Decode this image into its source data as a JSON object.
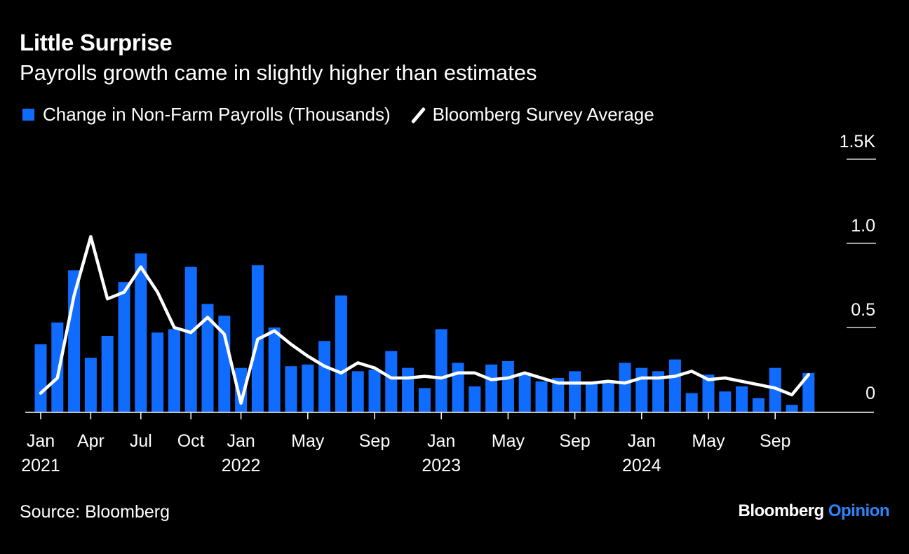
{
  "title": "Little Surprise",
  "subtitle": "Payrolls growth came in slightly higher than estimates",
  "legend": {
    "bar_label": "Change in Non-Farm Payrolls (Thousands)",
    "line_label": "Bloomberg Survey Average"
  },
  "source": "Source: Bloomberg",
  "brand": {
    "name": "Bloomberg",
    "suffix": "Opinion"
  },
  "colors": {
    "bar": "#0f6cff",
    "line": "#ffffff",
    "background": "#000000",
    "brand_accent": "#2a86ff"
  },
  "chart_data": {
    "type": "bar",
    "ylim": [
      0,
      1.5
    ],
    "yticks": [
      {
        "value": 0,
        "label": "0"
      },
      {
        "value": 0.5,
        "label": "0.5"
      },
      {
        "value": 1.0,
        "label": "1.0"
      },
      {
        "value": 1.5,
        "label": "1.5K"
      }
    ],
    "xticks": [
      {
        "index": 0,
        "label": "Jan",
        "year": "2021"
      },
      {
        "index": 3,
        "label": "Apr",
        "year": ""
      },
      {
        "index": 6,
        "label": "Jul",
        "year": ""
      },
      {
        "index": 9,
        "label": "Oct",
        "year": ""
      },
      {
        "index": 12,
        "label": "Jan",
        "year": "2022"
      },
      {
        "index": 16,
        "label": "May",
        "year": ""
      },
      {
        "index": 20,
        "label": "Sep",
        "year": ""
      },
      {
        "index": 24,
        "label": "Jan",
        "year": "2023"
      },
      {
        "index": 28,
        "label": "May",
        "year": ""
      },
      {
        "index": 32,
        "label": "Sep",
        "year": ""
      },
      {
        "index": 36,
        "label": "Jan",
        "year": "2024"
      },
      {
        "index": 40,
        "label": "May",
        "year": ""
      },
      {
        "index": 44,
        "label": "Sep",
        "year": ""
      }
    ],
    "x": [
      "2021-01",
      "2021-02",
      "2021-03",
      "2021-04",
      "2021-05",
      "2021-06",
      "2021-07",
      "2021-08",
      "2021-09",
      "2021-10",
      "2021-11",
      "2021-12",
      "2022-01",
      "2022-02",
      "2022-03",
      "2022-04",
      "2022-05",
      "2022-06",
      "2022-07",
      "2022-08",
      "2022-09",
      "2022-10",
      "2022-11",
      "2022-12",
      "2023-01",
      "2023-02",
      "2023-03",
      "2023-04",
      "2023-05",
      "2023-06",
      "2023-07",
      "2023-08",
      "2023-09",
      "2023-10",
      "2023-11",
      "2023-12",
      "2024-01",
      "2024-02",
      "2024-03",
      "2024-04",
      "2024-05",
      "2024-06",
      "2024-07",
      "2024-08",
      "2024-09",
      "2024-10",
      "2024-11"
    ],
    "series": [
      {
        "name": "Change in Non-Farm Payrolls (Thousands)",
        "type": "bar",
        "values": [
          0.4,
          0.53,
          0.84,
          0.32,
          0.45,
          0.77,
          0.94,
          0.47,
          0.49,
          0.86,
          0.64,
          0.57,
          0.26,
          0.87,
          0.5,
          0.27,
          0.28,
          0.42,
          0.69,
          0.24,
          0.25,
          0.36,
          0.26,
          0.14,
          0.49,
          0.29,
          0.15,
          0.28,
          0.3,
          0.22,
          0.18,
          0.2,
          0.24,
          0.17,
          0.18,
          0.29,
          0.26,
          0.24,
          0.31,
          0.11,
          0.22,
          0.12,
          0.15,
          0.08,
          0.26,
          0.04,
          0.23
        ]
      },
      {
        "name": "Bloomberg Survey Average",
        "type": "line",
        "values": [
          0.11,
          0.2,
          0.69,
          1.04,
          0.67,
          0.71,
          0.86,
          0.71,
          0.5,
          0.47,
          0.56,
          0.46,
          0.05,
          0.43,
          0.48,
          0.4,
          0.33,
          0.27,
          0.23,
          0.29,
          0.26,
          0.2,
          0.2,
          0.21,
          0.2,
          0.23,
          0.23,
          0.19,
          0.2,
          0.23,
          0.2,
          0.17,
          0.17,
          0.17,
          0.18,
          0.17,
          0.2,
          0.2,
          0.21,
          0.24,
          0.19,
          0.2,
          0.18,
          0.16,
          0.14,
          0.1,
          0.22
        ]
      }
    ]
  }
}
